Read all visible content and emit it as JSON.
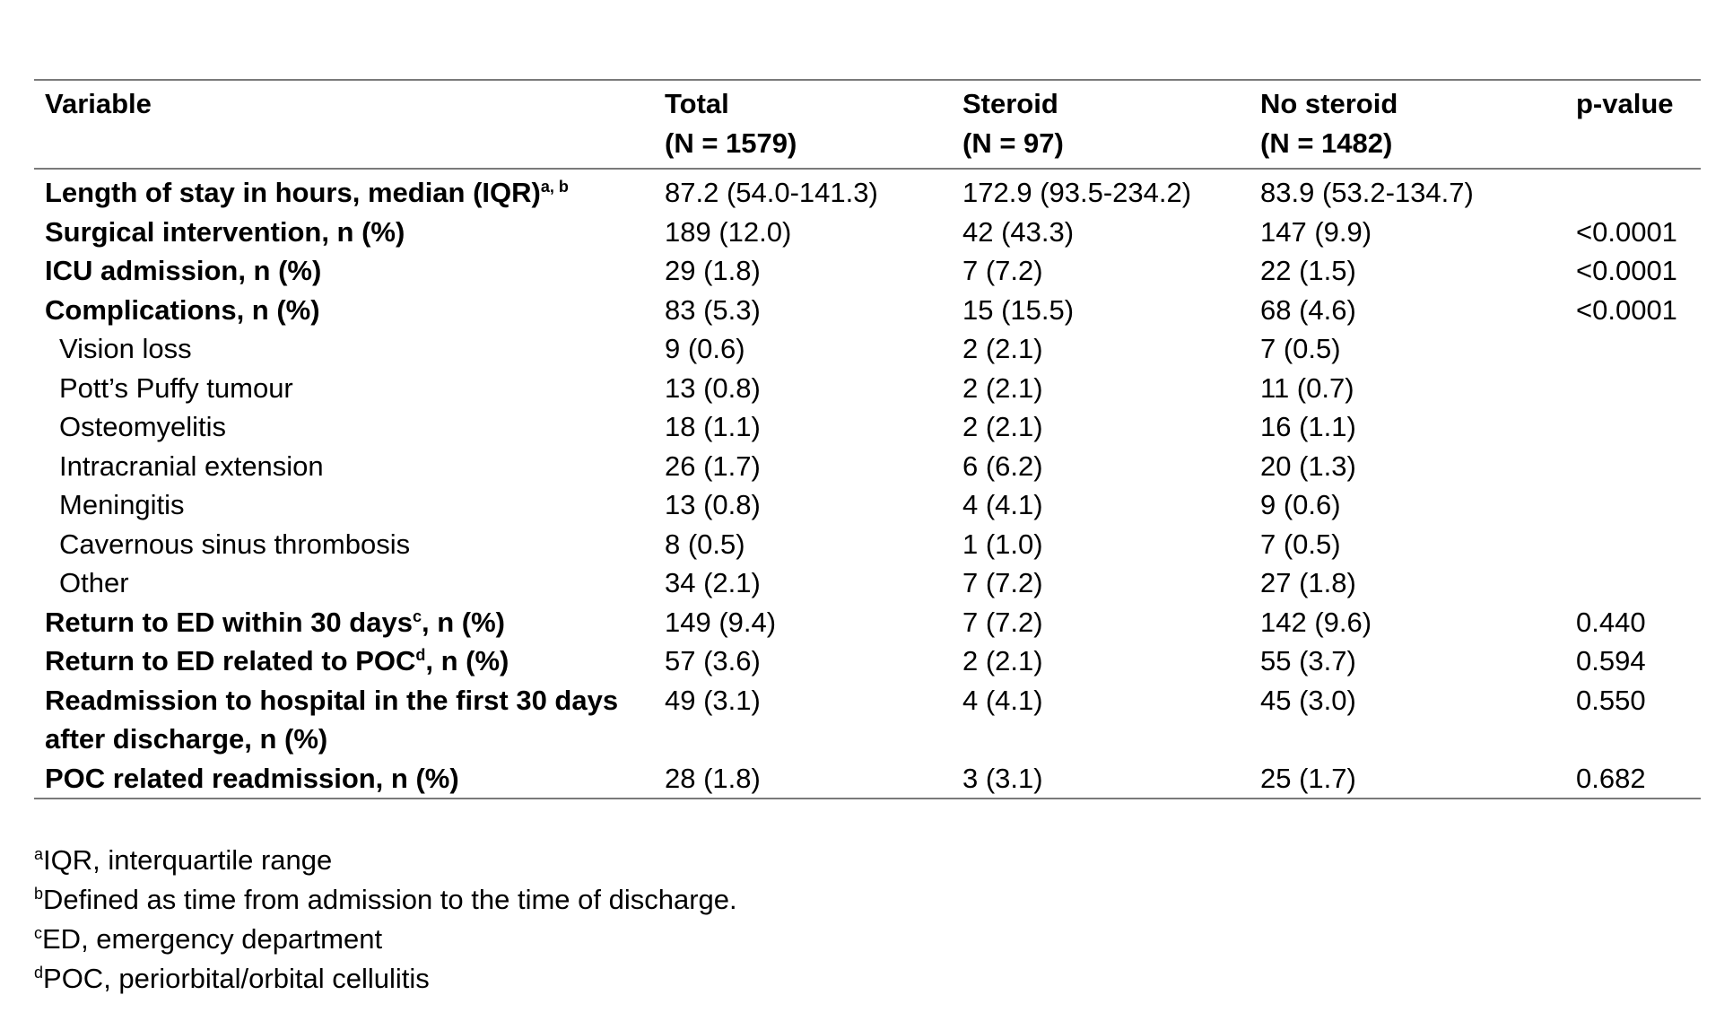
{
  "table": {
    "headers": [
      {
        "label": "Variable",
        "sub": ""
      },
      {
        "label": "Total",
        "sub": "(N = 1579)"
      },
      {
        "label": "Steroid",
        "sub": "(N = 97)"
      },
      {
        "label": "No steroid",
        "sub": "(N = 1482)"
      },
      {
        "label": "p-value",
        "sub": ""
      }
    ],
    "rows": [
      {
        "variable": "Length of stay in hours, median (IQR)",
        "sup": "a, b",
        "suffix": "",
        "bold": true,
        "total": "87.2 (54.0-141.3)",
        "steroid": "172.9 (93.5-234.2)",
        "no_steroid": "83.9 (53.2-134.7)",
        "p": ""
      },
      {
        "variable": "Surgical intervention, n (%)",
        "sup": "",
        "suffix": "",
        "bold": true,
        "total": "189 (12.0)",
        "steroid": "42 (43.3)",
        "no_steroid": "147 (9.9)",
        "p": "<0.0001"
      },
      {
        "variable": "ICU admission, n (%)",
        "sup": "",
        "suffix": "",
        "bold": true,
        "total": "29 (1.8)",
        "steroid": "7 (7.2)",
        "no_steroid": "22 (1.5)",
        "p": "<0.0001"
      },
      {
        "variable": "Complications, n (%)",
        "sup": "",
        "suffix": "",
        "bold": true,
        "total": "83 (5.3)",
        "steroid": "15 (15.5)",
        "no_steroid": "68 (4.6)",
        "p": "<0.0001"
      },
      {
        "variable": "Vision loss",
        "sup": "",
        "suffix": "",
        "bold": false,
        "total": "9 (0.6)",
        "steroid": "2 (2.1)",
        "no_steroid": "7 (0.5)",
        "p": ""
      },
      {
        "variable": "Pott’s Puffy tumour",
        "sup": "",
        "suffix": "",
        "bold": false,
        "total": "13 (0.8)",
        "steroid": "2 (2.1)",
        "no_steroid": "11 (0.7)",
        "p": ""
      },
      {
        "variable": "Osteomyelitis",
        "sup": "",
        "suffix": "",
        "bold": false,
        "total": "18 (1.1)",
        "steroid": "2 (2.1)",
        "no_steroid": "16 (1.1)",
        "p": ""
      },
      {
        "variable": "Intracranial extension",
        "sup": "",
        "suffix": "",
        "bold": false,
        "total": "26 (1.7)",
        "steroid": "6 (6.2)",
        "no_steroid": "20 (1.3)",
        "p": ""
      },
      {
        "variable": "Meningitis",
        "sup": "",
        "suffix": "",
        "bold": false,
        "total": "13 (0.8)",
        "steroid": "4 (4.1)",
        "no_steroid": "9 (0.6)",
        "p": ""
      },
      {
        "variable": "Cavernous sinus thrombosis",
        "sup": "",
        "suffix": "",
        "bold": false,
        "total": "8 (0.5)",
        "steroid": "1 (1.0)",
        "no_steroid": "7 (0.5)",
        "p": ""
      },
      {
        "variable": "Other",
        "sup": "",
        "suffix": "",
        "bold": false,
        "total": "34 (2.1)",
        "steroid": "7 (7.2)",
        "no_steroid": "27 (1.8)",
        "p": ""
      },
      {
        "variable": "Return to ED within 30 days",
        "sup": "c",
        "suffix": ", n (%)",
        "bold": true,
        "total": "149 (9.4)",
        "steroid": "7 (7.2)",
        "no_steroid": "142 (9.6)",
        "p": "0.440"
      },
      {
        "variable": "Return to ED related to POC",
        "sup": "d",
        "suffix": ", n (%)",
        "bold": true,
        "total": "57 (3.6)",
        "steroid": "2 (2.1)",
        "no_steroid": "55 (3.7)",
        "p": "0.594"
      },
      {
        "variable": "Readmission to hospital in the first 30 days after discharge, n (%)",
        "sup": "",
        "suffix": "",
        "bold": true,
        "total": "49 (3.1)",
        "steroid": "4 (4.1)",
        "no_steroid": "45 (3.0)",
        "p": "0.550"
      },
      {
        "variable": "POC related readmission, n (%)",
        "sup": "",
        "suffix": "",
        "bold": true,
        "total": "28 (1.8)",
        "steroid": "3 (3.1)",
        "no_steroid": "25 (1.7)",
        "p": "0.682"
      }
    ]
  },
  "footnotes": [
    {
      "mark": "a",
      "text": "IQR, interquartile range"
    },
    {
      "mark": "b",
      "text": "Defined as time from admission to the time of discharge."
    },
    {
      "mark": "c",
      "text": "ED, emergency department"
    },
    {
      "mark": "d",
      "text": "POC, periorbital/orbital cellulitis"
    }
  ]
}
